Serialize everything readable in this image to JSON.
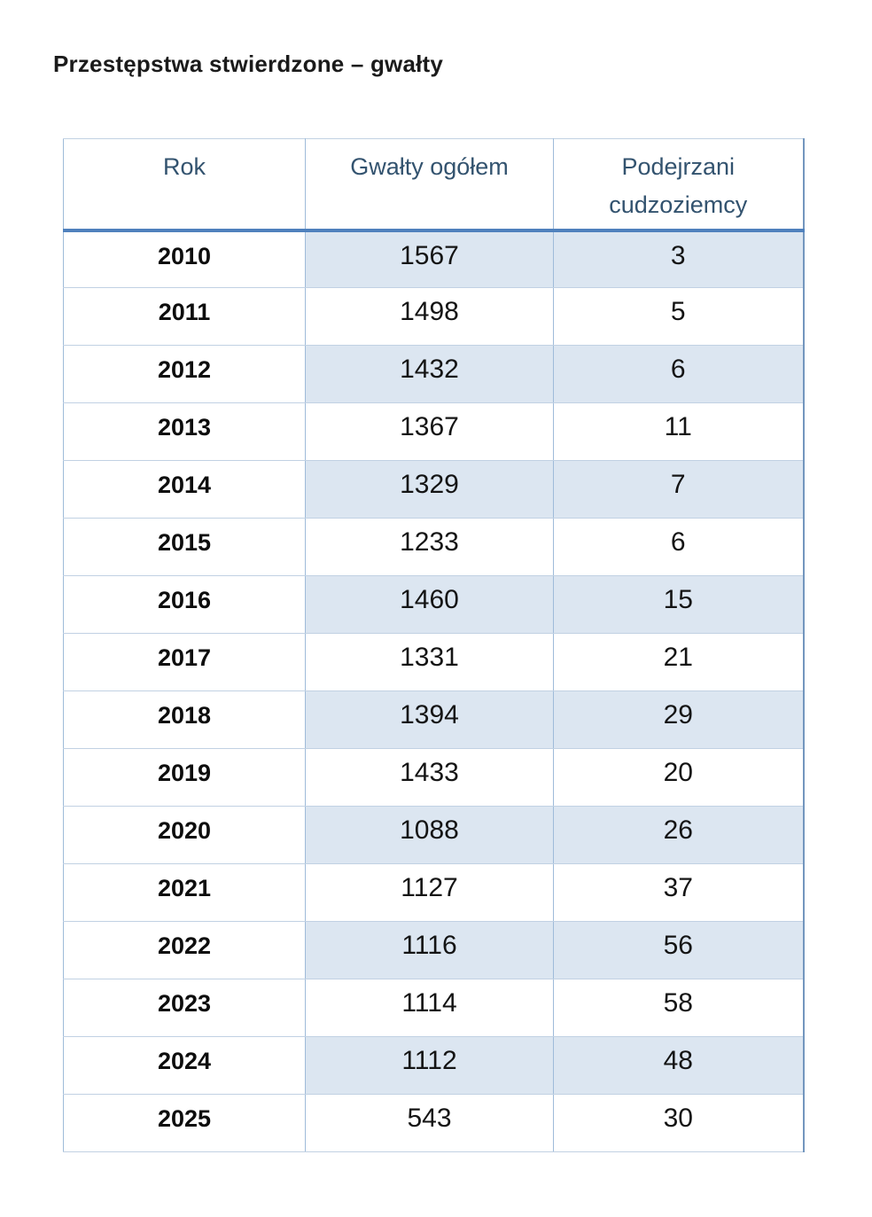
{
  "page": {
    "title": "Przestępstwa stwierdzone – gwałty"
  },
  "table": {
    "columns": [
      "Rok",
      "Gwałty ogółem",
      "Podejrzani cudzoziemcy"
    ],
    "rows": [
      {
        "year": "2010",
        "total": "1567",
        "foreigners": "3",
        "shaded": true
      },
      {
        "year": "2011",
        "total": "1498",
        "foreigners": "5",
        "shaded": false
      },
      {
        "year": "2012",
        "total": "1432",
        "foreigners": "6",
        "shaded": true
      },
      {
        "year": "2013",
        "total": "1367",
        "foreigners": "11",
        "shaded": false
      },
      {
        "year": "2014",
        "total": "1329",
        "foreigners": "7",
        "shaded": true
      },
      {
        "year": "2015",
        "total": "1233",
        "foreigners": "6",
        "shaded": false
      },
      {
        "year": "2016",
        "total": "1460",
        "foreigners": "15",
        "shaded": true
      },
      {
        "year": "2017",
        "total": "1331",
        "foreigners": "21",
        "shaded": false
      },
      {
        "year": "2018",
        "total": "1394",
        "foreigners": "29",
        "shaded": true
      },
      {
        "year": "2019",
        "total": "1433",
        "foreigners": "20",
        "shaded": false
      },
      {
        "year": "2020",
        "total": "1088",
        "foreigners": "26",
        "shaded": true
      },
      {
        "year": "2021",
        "total": "1127",
        "foreigners": "37",
        "shaded": false
      },
      {
        "year": "2022",
        "total": "1116",
        "foreigners": "56",
        "shaded": true
      },
      {
        "year": "2023",
        "total": "1114",
        "foreigners": "58",
        "shaded": false
      },
      {
        "year": "2024",
        "total": "1112",
        "foreigners": "48",
        "shaded": true
      },
      {
        "year": "2025",
        "total": "543",
        "foreigners": "30",
        "shaded": false
      }
    ]
  },
  "colors": {
    "accent": "#4F81BD",
    "row_shading": "#DCE6F1",
    "header_text": "#33536F"
  }
}
